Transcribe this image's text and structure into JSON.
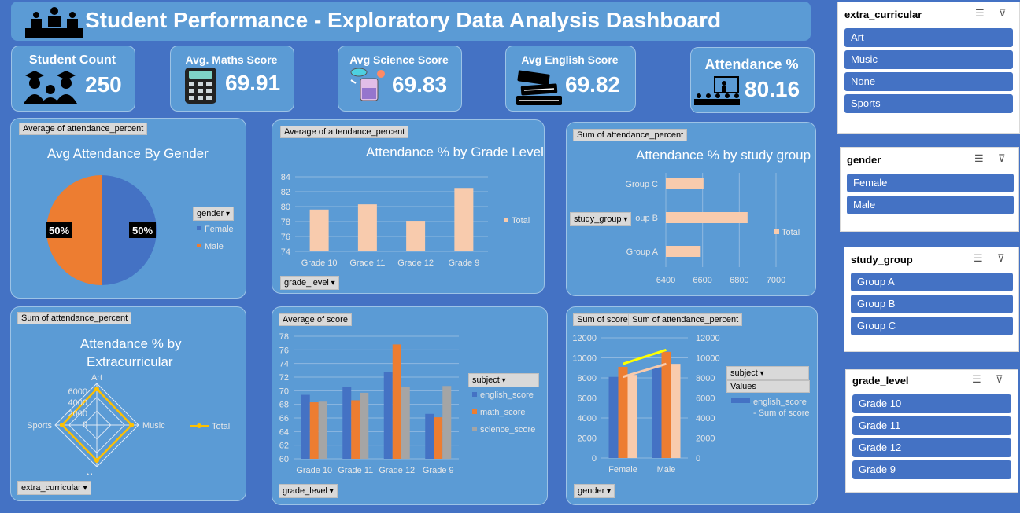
{
  "header": {
    "title": "Student Performance - Exploratory Data Analysis Dashboard"
  },
  "kpis": {
    "student_count": {
      "label": "Student Count",
      "value": "250"
    },
    "maths": {
      "label": "Avg. Maths Score",
      "value": "69.91"
    },
    "science": {
      "label": "Avg Science Score",
      "value": "69.83"
    },
    "english": {
      "label": "Avg English Score",
      "value": "69.82"
    },
    "attendance": {
      "label": "Attendance %",
      "value": "80.16"
    }
  },
  "colors": {
    "background": "#4472c4",
    "panel": "#5b9bd5",
    "blue": "#4472c4",
    "orange": "#ed7d31",
    "gray": "#a5a5a5",
    "peach": "#f8cbad",
    "yellow": "#ffc000"
  },
  "charts": {
    "gender_pie": {
      "field": "Average of attendance_percent",
      "title": "Avg Attendance By Gender",
      "legend_field": "gender",
      "legend": [
        "Female",
        "Male"
      ],
      "labels": [
        "50%",
        "50%"
      ]
    },
    "grade_bar": {
      "field": "Average of attendance_percent",
      "title": "Attendance % by Grade Level",
      "legend": "Total",
      "axis_field": "grade_level",
      "yticks": [
        "74",
        "76",
        "78",
        "80",
        "82",
        "84"
      ]
    },
    "group_bar": {
      "field": "Sum of attendance_percent",
      "title": "Attendance % by study group",
      "legend": "Total",
      "axis_field": "study_group",
      "xticks": [
        "6400",
        "6600",
        "6800",
        "7000"
      ],
      "hidden_label": "oup B"
    },
    "radar": {
      "field": "Sum of attendance_percent",
      "title_line1": "Attendance % by",
      "title_line2": "Extracurricular",
      "legend": "Total",
      "axis_field": "extra_curricular",
      "ticks": [
        "6000",
        "4000",
        "2000",
        "0"
      ]
    },
    "score_bar": {
      "field": "Average of score",
      "legend_field": "subject",
      "legend": [
        "english_score",
        "math_score",
        "science_score"
      ],
      "axis_field": "grade_level",
      "yticks": [
        "60",
        "62",
        "64",
        "66",
        "68",
        "70",
        "72",
        "74",
        "76",
        "78"
      ]
    },
    "combo": {
      "field1": "Sum of score",
      "field2": "Sum of attendance_percent",
      "legend_field": "subject",
      "values_label": "Values",
      "legend_entry_1": "english_score",
      "legend_entry_2": "- Sum of score",
      "axis_field": "gender",
      "yticks": [
        "0",
        "2000",
        "4000",
        "6000",
        "8000",
        "10000",
        "12000"
      ]
    }
  },
  "chart_data": [
    {
      "type": "pie",
      "title": "Avg Attendance By Gender",
      "categories": [
        "Female",
        "Male"
      ],
      "values": [
        50,
        50
      ]
    },
    {
      "type": "bar",
      "title": "Attendance % by Grade Level",
      "categories": [
        "Grade 10",
        "Grade 11",
        "Grade 12",
        "Grade 9"
      ],
      "values": [
        79.6,
        80.3,
        78.1,
        82.5
      ],
      "ylim": [
        74,
        84
      ],
      "series": [
        {
          "name": "Total",
          "values": [
            79.6,
            80.3,
            78.1,
            82.5
          ]
        }
      ]
    },
    {
      "type": "bar",
      "orientation": "horizontal",
      "title": "Attendance % by study group",
      "categories": [
        "Group A",
        "Group B",
        "Group C"
      ],
      "values": [
        6590,
        6845,
        6605
      ],
      "xlim": [
        6400,
        7000
      ],
      "series": [
        {
          "name": "Total",
          "values": [
            6590,
            6845,
            6605
          ]
        }
      ]
    },
    {
      "type": "radar",
      "title": "Attendance % by Extracurricular",
      "categories": [
        "Art",
        "Music",
        "None",
        "Sports"
      ],
      "values": [
        5200,
        5000,
        5100,
        5000
      ],
      "rlim": [
        0,
        6000
      ],
      "series": [
        {
          "name": "Total",
          "values": [
            5200,
            5000,
            5100,
            5000
          ]
        }
      ]
    },
    {
      "type": "bar",
      "categories": [
        "Grade 10",
        "Grade 11",
        "Grade 12",
        "Grade 9"
      ],
      "ylim": [
        60,
        78
      ],
      "series": [
        {
          "name": "english_score",
          "values": [
            69.4,
            70.6,
            72.7,
            66.6
          ]
        },
        {
          "name": "math_score",
          "values": [
            68.3,
            68.6,
            76.8,
            66.1
          ]
        },
        {
          "name": "science_score",
          "values": [
            68.4,
            69.7,
            70.6,
            70.7
          ]
        }
      ]
    },
    {
      "type": "bar",
      "categories": [
        "Female",
        "Male"
      ],
      "ylim": [
        0,
        12000
      ],
      "series": [
        {
          "name": "english_score",
          "values": [
            8100,
            9000
          ]
        },
        {
          "name": "math_score",
          "values": [
            9100,
            10600
          ]
        },
        {
          "name": "science_score",
          "values": [
            8300,
            9400
          ]
        }
      ],
      "lines": [
        {
          "values": [
            9400,
            10800
          ]
        },
        {
          "values": [
            8100,
            9400
          ]
        }
      ]
    }
  ],
  "slicers": {
    "extra_curricular": {
      "title": "extra_curricular",
      "items": [
        "Art",
        "Music",
        "None",
        "Sports"
      ]
    },
    "gender": {
      "title": "gender",
      "items": [
        "Female",
        "Male"
      ]
    },
    "study_group": {
      "title": "study_group",
      "items": [
        "Group A",
        "Group B",
        "Group C"
      ]
    },
    "grade_level": {
      "title": "grade_level",
      "items": [
        "Grade 10",
        "Grade 11",
        "Grade 12",
        "Grade 9"
      ]
    }
  }
}
